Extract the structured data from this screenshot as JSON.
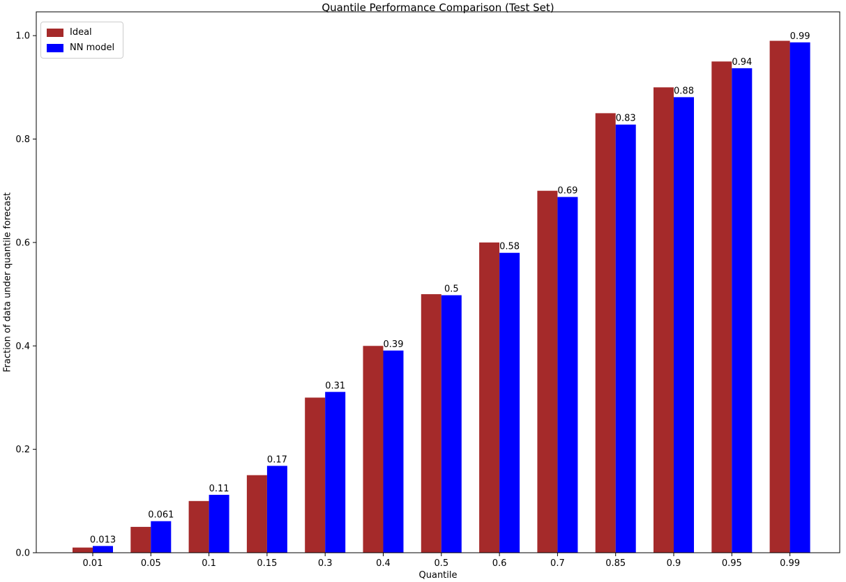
{
  "chart_data": {
    "type": "bar",
    "title": "Quantile Performance Comparison (Test Set)",
    "xlabel": "Quantile",
    "ylabel": "Fraction of data under quantile forecast",
    "categories": [
      "0.01",
      "0.05",
      "0.1",
      "0.15",
      "0.3",
      "0.4",
      "0.5",
      "0.6",
      "0.7",
      "0.85",
      "0.9",
      "0.95",
      "0.99"
    ],
    "series": [
      {
        "name": "Ideal",
        "color": "#A52A2A",
        "values": [
          0.01,
          0.05,
          0.1,
          0.15,
          0.3,
          0.4,
          0.5,
          0.6,
          0.7,
          0.85,
          0.9,
          0.95,
          0.99
        ]
      },
      {
        "name": "NN model",
        "color": "#0000FF",
        "values": [
          0.013,
          0.061,
          0.112,
          0.168,
          0.311,
          0.391,
          0.498,
          0.58,
          0.688,
          0.828,
          0.881,
          0.937,
          0.987
        ],
        "bar_labels": [
          "0.013",
          "0.061",
          "0.11",
          "0.17",
          "0.31",
          "0.39",
          "0.5",
          "0.58",
          "0.69",
          "0.83",
          "0.88",
          "0.94",
          "0.99"
        ]
      }
    ],
    "yticks": [
      "0.0",
      "0.2",
      "0.4",
      "0.6",
      "0.8",
      "1.0"
    ],
    "ylim": [
      0.0,
      1.046
    ],
    "grid": false,
    "legend_position": "upper left",
    "axis_color": "#000000",
    "text_color": "#000000"
  }
}
